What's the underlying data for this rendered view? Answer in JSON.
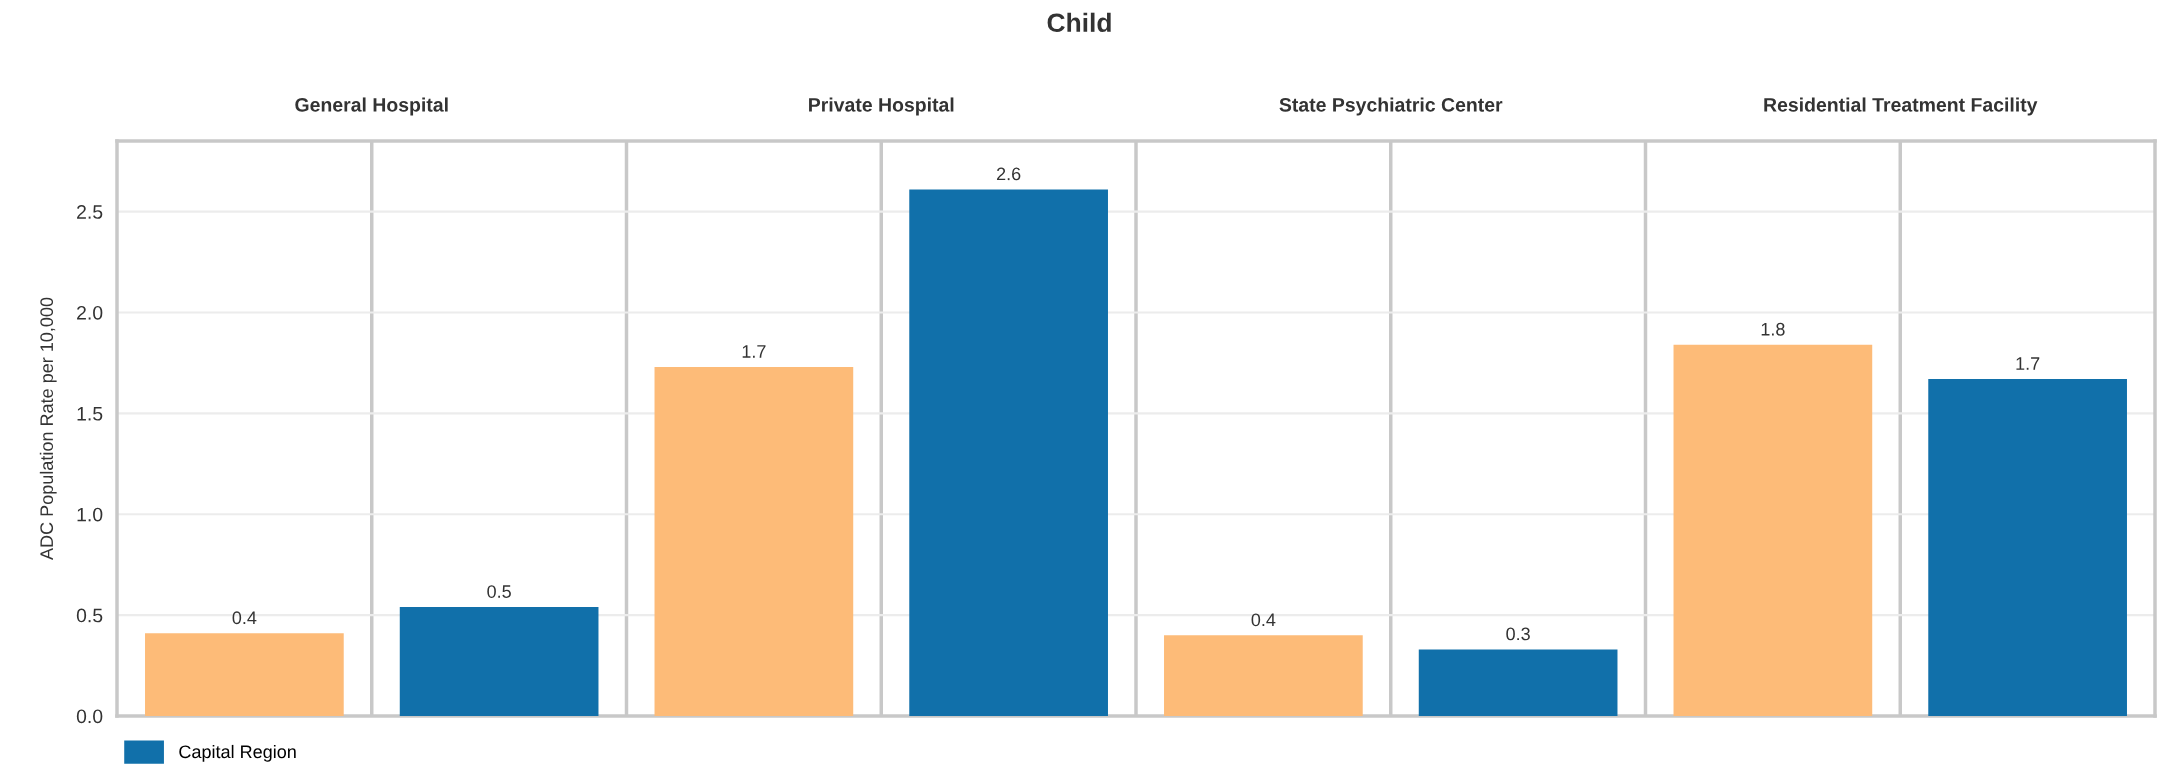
{
  "chart_data": {
    "type": "bar",
    "title": "Child",
    "ylabel": "ADC Population Rate per 10,000",
    "annotations": [
      "General Hospital",
      "Private Hospital",
      "State Psychiatric Center",
      "Residential Treatment Facility"
    ],
    "categories": [
      null,
      null,
      null,
      null,
      null,
      null,
      null,
      null
    ],
    "ylim": [
      0,
      2.85
    ],
    "yticks": [
      {
        "value": 0,
        "label": "0.0"
      },
      0.5,
      {
        "value": 1,
        "label": "1.0"
      },
      1.5,
      {
        "value": 2,
        "label": "2.0"
      },
      2.5
    ],
    "grid": true,
    "legend": "bottom",
    "series": [
      {
        "color": "#fdbb78",
        "values": [
          0.41,
          null,
          1.73,
          null,
          0.4,
          null,
          1.84,
          null
        ],
        "value_labels": [
          "0.4",
          null,
          "1.7",
          null,
          "0.4",
          null,
          "1.8",
          null
        ]
      },
      {
        "name": "Capital Region",
        "color": "#1170aa",
        "values": [
          null,
          0.54,
          null,
          2.61,
          null,
          0.33,
          null,
          1.67
        ],
        "value_labels": [
          null,
          "0.5",
          null,
          "2.6",
          null,
          "0.3",
          null,
          "1.7"
        ]
      }
    ]
  }
}
